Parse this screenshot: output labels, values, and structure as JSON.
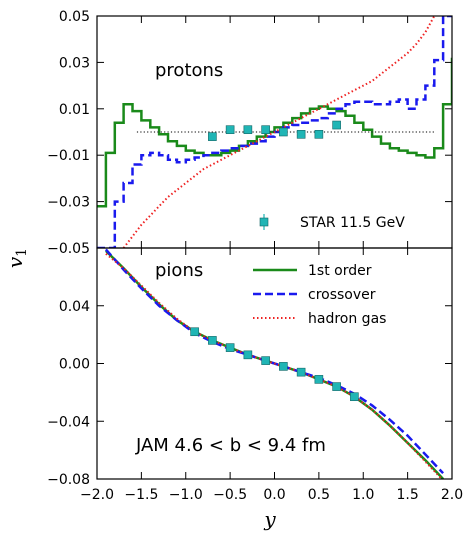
{
  "colors": {
    "first_order": "#1a8a1a",
    "crossover": "#1a1aee",
    "hadron_gas": "#ee2222",
    "star": "#20b5b5",
    "zero_line": "#333333"
  },
  "chart_data": [
    {
      "type": "line",
      "panel": "top",
      "panel_label": "protons",
      "xlim": [
        -2.0,
        2.0
      ],
      "ylim": [
        -0.05,
        0.05
      ],
      "yticks": [
        -0.05,
        -0.03,
        -0.01,
        0.01,
        0.03,
        0.05
      ],
      "ytick_labels": [
        "−0.05",
        "−0.03",
        "−0.01",
        "0.01",
        "0.03",
        "0.05"
      ],
      "legend_position": "bottom-right",
      "legend": [
        {
          "label": "STAR 11.5 GeV",
          "style": "marker"
        }
      ],
      "series": [
        {
          "key": "first_order",
          "style": "steps",
          "x": [
            -2.0,
            -1.9,
            -1.8,
            -1.7,
            -1.6,
            -1.5,
            -1.4,
            -1.3,
            -1.2,
            -1.1,
            -1.0,
            -0.9,
            -0.8,
            -0.7,
            -0.6,
            -0.5,
            -0.4,
            -0.3,
            -0.2,
            -0.1,
            0.0,
            0.1,
            0.2,
            0.3,
            0.4,
            0.5,
            0.6,
            0.7,
            0.8,
            0.9,
            1.0,
            1.1,
            1.2,
            1.3,
            1.4,
            1.5,
            1.6,
            1.7,
            1.8,
            1.9,
            2.0
          ],
          "y": [
            -0.032,
            -0.009,
            0.004,
            0.012,
            0.009,
            0.005,
            0.002,
            -0.001,
            -0.004,
            -0.006,
            -0.008,
            -0.009,
            -0.01,
            -0.01,
            -0.009,
            -0.008,
            -0.006,
            -0.004,
            -0.002,
            0.0,
            0.002,
            0.004,
            0.006,
            0.008,
            0.01,
            0.011,
            0.01,
            0.009,
            0.007,
            0.004,
            0.001,
            -0.002,
            -0.005,
            -0.007,
            -0.008,
            -0.009,
            -0.01,
            -0.011,
            -0.007,
            0.012,
            0.032
          ]
        },
        {
          "key": "crossover",
          "style": "steps-dashed",
          "x": [
            -2.0,
            -1.9,
            -1.8,
            -1.7,
            -1.6,
            -1.5,
            -1.4,
            -1.3,
            -1.2,
            -1.1,
            -1.0,
            -0.9,
            -0.8,
            -0.7,
            -0.6,
            -0.5,
            -0.4,
            -0.3,
            -0.2,
            -0.1,
            0.0,
            0.1,
            0.2,
            0.3,
            0.4,
            0.5,
            0.6,
            0.7,
            0.8,
            0.9,
            1.0,
            1.1,
            1.2,
            1.3,
            1.4,
            1.5,
            1.6,
            1.7,
            1.8,
            1.9,
            2.0
          ],
          "y": [
            -0.05,
            -0.05,
            -0.03,
            -0.022,
            -0.014,
            -0.01,
            -0.009,
            -0.01,
            -0.012,
            -0.013,
            -0.012,
            -0.011,
            -0.01,
            -0.009,
            -0.008,
            -0.007,
            -0.006,
            -0.005,
            -0.004,
            -0.002,
            0.0,
            0.002,
            0.003,
            0.004,
            0.005,
            0.006,
            0.008,
            0.01,
            0.012,
            0.013,
            0.013,
            0.012,
            0.012,
            0.013,
            0.014,
            0.01,
            0.014,
            0.02,
            0.031,
            0.05,
            0.05
          ]
        },
        {
          "key": "hadron_gas",
          "style": "dotted",
          "x": [
            -1.7,
            -1.6,
            -1.5,
            -1.4,
            -1.3,
            -1.2,
            -1.1,
            -1.0,
            -0.9,
            -0.8,
            -0.7,
            -0.6,
            -0.5,
            -0.4,
            -0.3,
            -0.2,
            -0.1,
            0.0,
            0.1,
            0.2,
            0.3,
            0.4,
            0.5,
            0.6,
            0.7,
            0.8,
            0.9,
            1.0,
            1.1,
            1.2,
            1.3,
            1.4,
            1.5,
            1.6,
            1.7,
            1.8
          ],
          "y": [
            -0.05,
            -0.045,
            -0.04,
            -0.036,
            -0.032,
            -0.028,
            -0.025,
            -0.022,
            -0.019,
            -0.016,
            -0.014,
            -0.012,
            -0.01,
            -0.008,
            -0.006,
            -0.004,
            -0.002,
            0.0,
            0.002,
            0.004,
            0.006,
            0.008,
            0.01,
            0.012,
            0.014,
            0.016,
            0.018,
            0.02,
            0.022,
            0.025,
            0.028,
            0.031,
            0.034,
            0.038,
            0.043,
            0.05
          ]
        },
        {
          "key": "zero",
          "style": "dotted-thin",
          "x": [
            -1.55,
            1.8
          ],
          "y": [
            0.0,
            0.0
          ]
        },
        {
          "key": "star",
          "style": "marker",
          "name": "STAR 11.5 GeV",
          "x": [
            -0.7,
            -0.5,
            -0.3,
            -0.1,
            0.1,
            0.3,
            0.5,
            0.7
          ],
          "y": [
            -0.002,
            0.001,
            0.001,
            0.001,
            0.0,
            -0.001,
            -0.001,
            0.003
          ],
          "err": [
            0.001,
            0.001,
            0.001,
            0.001,
            0.001,
            0.001,
            0.001,
            0.001
          ]
        }
      ]
    },
    {
      "type": "line",
      "panel": "bottom",
      "panel_label": "pions",
      "annotation": "JAM 4.6 < b < 9.4 fm",
      "xlim": [
        -2.0,
        2.0
      ],
      "ylim": [
        -0.08,
        0.08
      ],
      "yticks": [
        -0.08,
        -0.04,
        0.0,
        0.04
      ],
      "ytick_labels": [
        "−0.08",
        "−0.04",
        "0.00",
        "0.04"
      ],
      "xticks": [
        -2.0,
        -1.5,
        -1.0,
        -0.5,
        0.0,
        0.5,
        1.0,
        1.5,
        2.0
      ],
      "xtick_labels": [
        "−2.0",
        "−1.5",
        "−1.0",
        "−0.5",
        "0.0",
        "0.5",
        "1.0",
        "1.5",
        "2.0"
      ],
      "xlabel": "y",
      "ylabel": "v1",
      "legend_position": "top-right",
      "legend": [
        {
          "label": "1st order",
          "series": "first_order"
        },
        {
          "label": "crossover",
          "series": "crossover"
        },
        {
          "label": "hadron gas",
          "series": "hadron_gas"
        }
      ],
      "series": [
        {
          "key": "first_order",
          "style": "solid",
          "name": "1st order",
          "x": [
            -1.9,
            -1.7,
            -1.5,
            -1.3,
            -1.1,
            -0.9,
            -0.7,
            -0.5,
            -0.3,
            -0.1,
            0.1,
            0.3,
            0.5,
            0.7,
            0.9,
            1.1,
            1.3,
            1.5,
            1.7,
            1.9
          ],
          "y": [
            0.078,
            0.066,
            0.053,
            0.041,
            0.03,
            0.022,
            0.016,
            0.011,
            0.006,
            0.002,
            -0.002,
            -0.006,
            -0.011,
            -0.016,
            -0.023,
            -0.032,
            -0.043,
            -0.055,
            -0.067,
            -0.08
          ]
        },
        {
          "key": "crossover",
          "style": "dashed",
          "name": "crossover",
          "x": [
            -1.9,
            -1.7,
            -1.5,
            -1.3,
            -1.1,
            -0.9,
            -0.7,
            -0.5,
            -0.3,
            -0.1,
            0.1,
            0.3,
            0.5,
            0.7,
            0.9,
            1.1,
            1.3,
            1.5,
            1.7,
            1.9
          ],
          "y": [
            0.079,
            0.065,
            0.052,
            0.04,
            0.03,
            0.021,
            0.015,
            0.01,
            0.006,
            0.002,
            -0.002,
            -0.006,
            -0.01,
            -0.015,
            -0.021,
            -0.029,
            -0.039,
            -0.05,
            -0.063,
            -0.076
          ]
        },
        {
          "key": "hadron_gas",
          "style": "dotted",
          "name": "hadron gas",
          "x": [
            -1.9,
            -1.7,
            -1.5,
            -1.3,
            -1.1,
            -0.9,
            -0.7,
            -0.5,
            -0.3,
            -0.1,
            0.1,
            0.3,
            0.5,
            0.7,
            0.9,
            1.1,
            1.3,
            1.5,
            1.7,
            1.9
          ],
          "y": [
            0.076,
            0.066,
            0.054,
            0.042,
            0.031,
            0.022,
            0.016,
            0.011,
            0.006,
            0.002,
            -0.002,
            -0.006,
            -0.011,
            -0.016,
            -0.023,
            -0.032,
            -0.043,
            -0.055,
            -0.068,
            -0.081
          ]
        },
        {
          "key": "star",
          "style": "marker",
          "name": "STAR 11.5 GeV",
          "x": [
            -0.9,
            -0.7,
            -0.5,
            -0.3,
            -0.1,
            0.1,
            0.3,
            0.5,
            0.7,
            0.9
          ],
          "y": [
            0.022,
            0.016,
            0.011,
            0.006,
            0.002,
            -0.002,
            -0.006,
            -0.011,
            -0.016,
            -0.023
          ],
          "err": [
            0.001,
            0.001,
            0.001,
            0.001,
            0.001,
            0.001,
            0.001,
            0.001,
            0.001,
            0.001
          ]
        }
      ]
    }
  ]
}
